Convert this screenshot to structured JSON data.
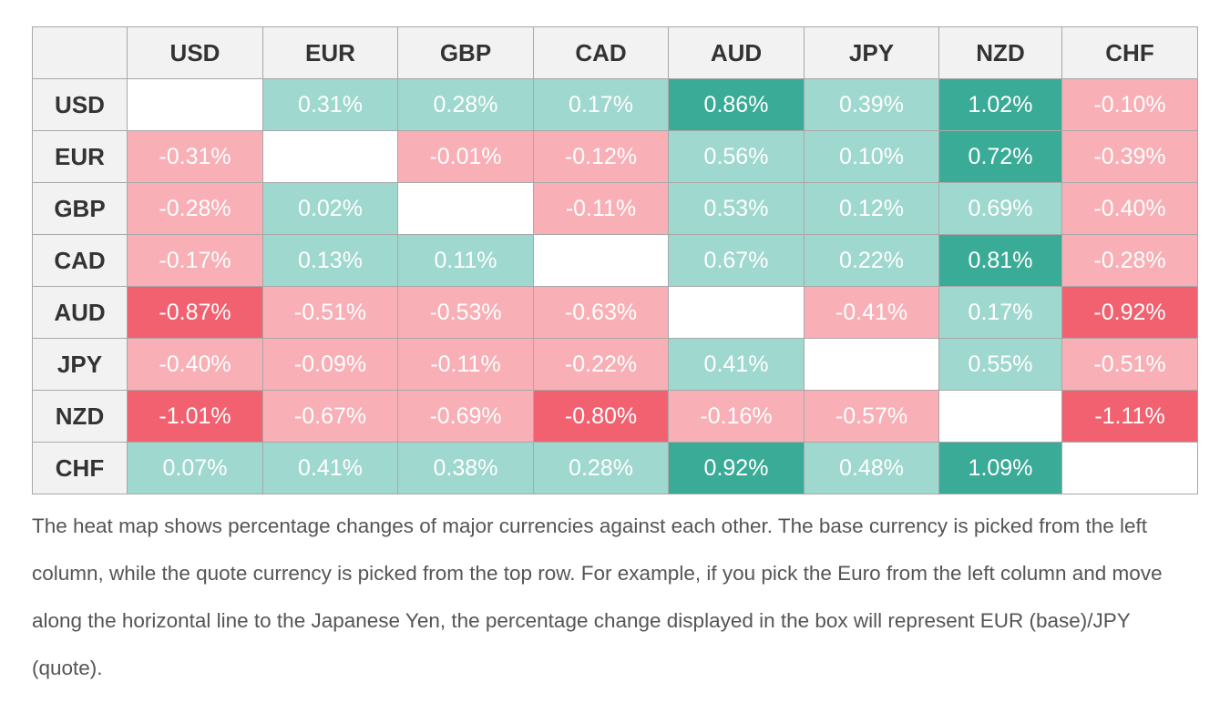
{
  "table": {
    "columns": [
      "USD",
      "EUR",
      "GBP",
      "CAD",
      "AUD",
      "JPY",
      "NZD",
      "CHF"
    ],
    "rows": [
      {
        "label": "USD",
        "cells": [
          null,
          "0.31%",
          "0.28%",
          "0.17%",
          "0.86%",
          "0.39%",
          "1.02%",
          "-0.10%"
        ]
      },
      {
        "label": "EUR",
        "cells": [
          "-0.31%",
          null,
          "-0.01%",
          "-0.12%",
          "0.56%",
          "0.10%",
          "0.72%",
          "-0.39%"
        ]
      },
      {
        "label": "GBP",
        "cells": [
          "-0.28%",
          "0.02%",
          null,
          "-0.11%",
          "0.53%",
          "0.12%",
          "0.69%",
          "-0.40%"
        ]
      },
      {
        "label": "CAD",
        "cells": [
          "-0.17%",
          "0.13%",
          "0.11%",
          null,
          "0.67%",
          "0.22%",
          "0.81%",
          "-0.28%"
        ]
      },
      {
        "label": "AUD",
        "cells": [
          "-0.87%",
          "-0.51%",
          "-0.53%",
          "-0.63%",
          null,
          "-0.41%",
          "0.17%",
          "-0.92%"
        ]
      },
      {
        "label": "JPY",
        "cells": [
          "-0.40%",
          "-0.09%",
          "-0.11%",
          "-0.22%",
          "0.41%",
          null,
          "0.55%",
          "-0.51%"
        ]
      },
      {
        "label": "NZD",
        "cells": [
          "-1.01%",
          "-0.67%",
          "-0.69%",
          "-0.80%",
          "-0.16%",
          "-0.57%",
          null,
          "-1.11%"
        ]
      },
      {
        "label": "CHF",
        "cells": [
          "0.07%",
          "0.41%",
          "0.38%",
          "0.28%",
          "0.92%",
          "0.48%",
          "1.09%",
          null
        ]
      }
    ]
  },
  "caption": "The heat map shows percentage changes of major currencies against each other. The base currency is picked from the left column, while the quote currency is picked from the top row. For example, if you pick the Euro from the left column and move along the horizontal line to the Japanese Yen, the percentage change displayed in the box will represent EUR (base)/JPY (quote)."
}
